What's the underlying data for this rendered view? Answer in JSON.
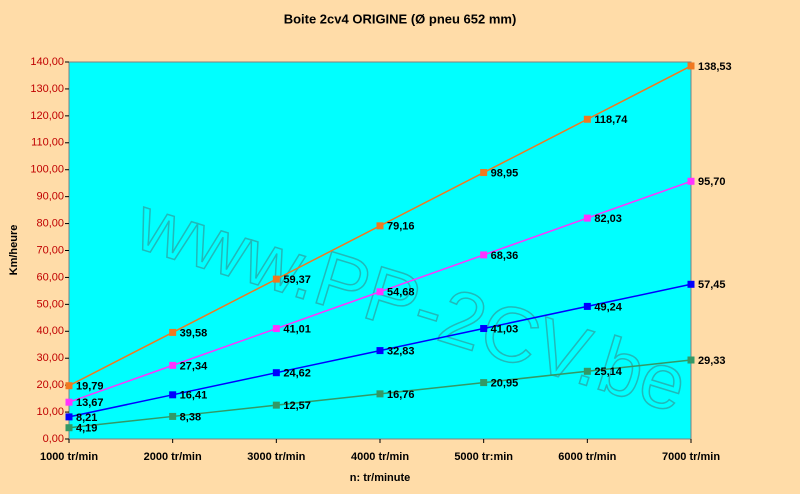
{
  "chart_data": {
    "type": "line",
    "title": "Boite 2cv4 ORIGINE (Ø pneu 652 mm)",
    "x_label": "n: tr/minute",
    "y_label": "Km/heure",
    "watermark": "www.PP-2CV.be",
    "categories": [
      "1000 tr/min",
      "2000 tr/min",
      "3000 tr/min",
      "4000 tr/min",
      "5000 tr:min",
      "6000 tr/min",
      "7000 tr/min"
    ],
    "series": [
      {
        "color": "#f07820",
        "values": [
          19.79,
          39.58,
          59.37,
          79.16,
          98.95,
          118.74,
          138.53
        ],
        "value_labels": [
          "19,79",
          "39,58",
          "59,37",
          "79,16",
          "98,95",
          "118,74",
          "138,53"
        ]
      },
      {
        "color": "#ff33ff",
        "values": [
          13.67,
          27.34,
          41.01,
          54.68,
          68.36,
          82.03,
          95.7
        ],
        "value_labels": [
          "13,67",
          "27,34",
          "41,01",
          "54,68",
          "68,36",
          "82,03",
          "95,70"
        ]
      },
      {
        "color": "#0000ff",
        "values": [
          8.21,
          16.41,
          24.62,
          32.83,
          41.03,
          49.24,
          57.45
        ],
        "value_labels": [
          "8,21",
          "16,41",
          "24,62",
          "32,83",
          "41,03",
          "49,24",
          "57,45"
        ]
      },
      {
        "color": "#339966",
        "values": [
          4.19,
          8.38,
          12.57,
          16.76,
          20.95,
          25.14,
          29.33
        ],
        "value_labels": [
          "4,19",
          "8,38",
          "12,57",
          "16,76",
          "20,95",
          "25,14",
          "29,33"
        ]
      }
    ],
    "ylim": [
      0,
      140
    ],
    "yticks": [
      {
        "value": 0,
        "label": "0,00"
      },
      {
        "value": 10,
        "label": "10,00"
      },
      {
        "value": 20,
        "label": "20,00"
      },
      {
        "value": 30,
        "label": "30,00"
      },
      {
        "value": 40,
        "label": "40,00"
      },
      {
        "value": 50,
        "label": "50,00"
      },
      {
        "value": 60,
        "label": "60,00"
      },
      {
        "value": 70,
        "label": "70,00"
      },
      {
        "value": 80,
        "label": "80,00"
      },
      {
        "value": 90,
        "label": "90,00"
      },
      {
        "value": 100,
        "label": "100,00"
      },
      {
        "value": 110,
        "label": "110,00"
      },
      {
        "value": 120,
        "label": "120,00"
      },
      {
        "value": 130,
        "label": "130,00"
      },
      {
        "value": 140,
        "label": "140,00"
      }
    ],
    "grid": false
  }
}
